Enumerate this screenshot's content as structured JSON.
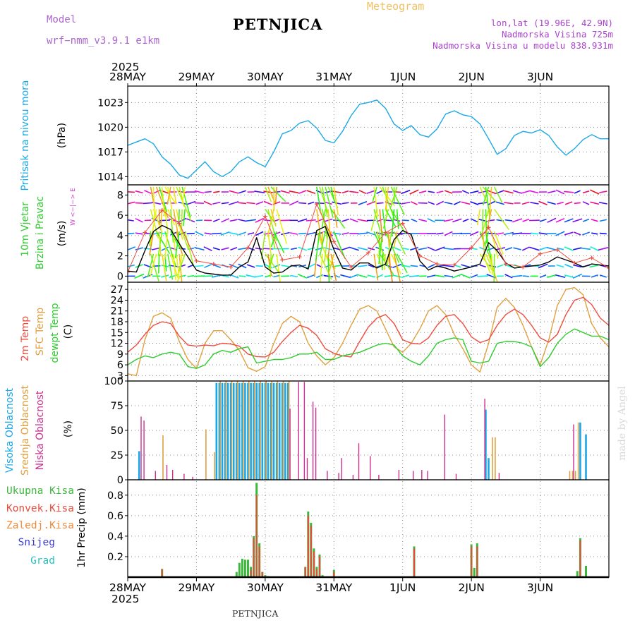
{
  "header": {
    "model_label": "Model",
    "model_name": "wrf−nmm_v3.9.1  e1km",
    "station": "PETNJICA",
    "meteogram": "Meteogram",
    "lonlat": "lon,lat (19.96E, 42.9N)",
    "altitude": "Nadmorska Visina 725m",
    "model_altitude": "Nadmorska Visina u modelu 838.931m",
    "footer_station": "PETNJICA",
    "credit": "made by Angel"
  },
  "colors": {
    "pressure": "#1aa7e8",
    "temp2m": "#ef4b3f",
    "sfc": "#e0a040",
    "dewpt": "#2ecc2e",
    "cloud_high": "#1aa7e8",
    "cloud_mid": "#e0a040",
    "cloud_low": "#cc2f8e",
    "precip_total": "#3cb83c",
    "precip_conv": "#ea4a3c",
    "precip_frz": "#f08a3a",
    "snow": "#3a3ad8",
    "hail": "#27c2c2"
  },
  "time_axis": {
    "year_top": "2025",
    "year_bottom": "2025",
    "labels": [
      "28MAY",
      "29MAY",
      "30MAY",
      "31MAY",
      "1JUN",
      "2JUN",
      "3JUN"
    ]
  },
  "panels": {
    "pressure": {
      "title": "Pritisak na nivou mora",
      "unit": "(hPa)",
      "yticks": [
        "1023",
        "1020",
        "1017",
        "1014"
      ]
    },
    "wind": {
      "title": "10m Vjetar",
      "title2": "Brzina i Pravac",
      "unit": "(m/s)",
      "yticks": [
        "8",
        "6",
        "4",
        "2",
        "0"
      ],
      "compass": "W <−|−> E"
    },
    "temp": {
      "title_2m": "2m Temp",
      "title_sfc": "SFC Temp",
      "title_dew": "dewpt Temp",
      "unit": "(C)",
      "yticks": [
        "27",
        "24",
        "21",
        "18",
        "15",
        "12",
        "9",
        "6",
        "3"
      ]
    },
    "cloud": {
      "title_high": "Visoka Oblacnost",
      "title_mid": "Srednja Oblacnost",
      "title_low": "Niska Oblacnost",
      "unit": "(%)",
      "yticks": [
        "100",
        "75",
        "50",
        "25",
        "0"
      ]
    },
    "precip": {
      "title": "1hr Precip (mm)",
      "yticks": [
        "0.8",
        "0.6",
        "0.4",
        "0.2"
      ],
      "legend": [
        "Ukupna Kisa",
        "Konvek.Kisa",
        "Zaledj.Kisa",
        "Snijeg",
        "Grad"
      ]
    }
  },
  "chart_data": [
    {
      "type": "line",
      "x_unit": "hours since 28 May 2025 00:00",
      "ylim": [
        1013,
        1025
      ],
      "series": [
        {
          "x": [
            0,
            3,
            6,
            9,
            12,
            15,
            18,
            21,
            24,
            27,
            30,
            33,
            36,
            39,
            42,
            45,
            48,
            51,
            54,
            57,
            60,
            63,
            66,
            69,
            72,
            75,
            78,
            81,
            84,
            87,
            90,
            93,
            96,
            99,
            102,
            105,
            108,
            111,
            114,
            117,
            120,
            123,
            126,
            129,
            132,
            135,
            138,
            141,
            144,
            147,
            150,
            153,
            156,
            159,
            162,
            165,
            168
          ],
          "y": [
            1017.8,
            1018.2,
            1018.6,
            1018.0,
            1016.4,
            1015.5,
            1014.2,
            1013.8,
            1014.8,
            1015.8,
            1014.6,
            1014.0,
            1014.6,
            1015.8,
            1016.4,
            1015.7,
            1015.2,
            1017.0,
            1019.2,
            1019.6,
            1020.5,
            1020.8,
            1019.9,
            1018.4,
            1018.1,
            1019.5,
            1021.4,
            1022.8,
            1023.0,
            1023.3,
            1022.3,
            1020.4,
            1019.6,
            1020.2,
            1019.1,
            1018.8,
            1019.8,
            1021.6,
            1022.0,
            1021.5,
            1021.3,
            1020.4,
            1018.6,
            1016.7,
            1017.4,
            1019.0,
            1019.5,
            1019.3,
            1019.7,
            1019.0,
            1017.6,
            1016.6,
            1017.4,
            1018.5,
            1019.1,
            1018.6,
            1018.6
          ]
        }
      ]
    },
    {
      "type": "line",
      "ylim": [
        -0.6,
        9
      ],
      "series": [
        {
          "name": "wind_speed",
          "x": [
            0,
            3,
            6,
            9,
            12,
            15,
            18,
            21,
            24,
            27,
            30,
            33,
            36,
            39,
            42,
            45,
            48,
            51,
            54,
            57,
            60,
            63,
            66,
            69,
            72,
            75,
            78,
            81,
            84,
            87,
            90,
            93,
            96,
            99,
            102,
            105,
            108,
            111,
            114,
            117,
            120,
            123,
            126,
            129,
            132,
            135,
            138,
            141,
            144,
            147,
            150,
            153,
            156,
            159,
            162,
            165,
            168
          ],
          "y": [
            0.5,
            0.4,
            2.5,
            4.4,
            5.0,
            4.6,
            3.2,
            1.9,
            0.6,
            0.3,
            0.2,
            0.1,
            0.1,
            0.9,
            1.4,
            3.8,
            0.9,
            0.3,
            0.4,
            1.0,
            1.1,
            0.7,
            4.5,
            4.9,
            2.6,
            0.8,
            0.6,
            1.3,
            1.3,
            0.8,
            1.2,
            3.6,
            4.5,
            4.1,
            1.5,
            0.6,
            1.0,
            0.8,
            0.5,
            0.7,
            0.9,
            1.2,
            3.3,
            2.5,
            1.3,
            0.8,
            0.9,
            1.0,
            1.1,
            1.4,
            1.9,
            1.6,
            1.3,
            0.9,
            1.2,
            1.1,
            1.0
          ]
        },
        {
          "name": "wind_gust",
          "x": [
            0,
            6,
            12,
            18,
            24,
            30,
            36,
            42,
            48,
            54,
            60,
            66,
            72,
            78,
            84,
            90,
            96,
            102,
            108,
            114,
            120,
            126,
            132,
            138,
            144,
            150,
            156,
            162,
            168
          ],
          "y": [
            0.4,
            4.3,
            6.5,
            5.2,
            1.5,
            1.2,
            0.9,
            2.8,
            5.9,
            1.6,
            1.9,
            7.1,
            3.4,
            0.9,
            2.3,
            4.3,
            5.2,
            2.0,
            1.2,
            1.1,
            2.8,
            4.8,
            1.2,
            0.9,
            2.2,
            2.6,
            1.3,
            1.8,
            0.8
          ]
        }
      ]
    },
    {
      "type": "line",
      "ylim": [
        1.5,
        29
      ],
      "series": [
        {
          "name": "2m Temp",
          "x": [
            0,
            3,
            6,
            9,
            12,
            15,
            18,
            21,
            24,
            27,
            30,
            33,
            36,
            39,
            42,
            45,
            48,
            51,
            54,
            57,
            60,
            63,
            66,
            69,
            72,
            75,
            78,
            81,
            84,
            87,
            90,
            93,
            96,
            99,
            102,
            105,
            108,
            111,
            114,
            117,
            120,
            123,
            126,
            129,
            132,
            135,
            138,
            141,
            144,
            147,
            150,
            153,
            156,
            159,
            162,
            165,
            168
          ],
          "y": [
            9.5,
            11.5,
            14.5,
            17.0,
            18.0,
            17.5,
            14.0,
            11.5,
            11.2,
            11.5,
            11.3,
            12.0,
            11.8,
            11.2,
            9.0,
            8.3,
            8.2,
            9.5,
            12.5,
            15.0,
            17.0,
            16.2,
            14.2,
            10.5,
            9.2,
            8.5,
            8.2,
            12.5,
            16.5,
            19.0,
            20.0,
            17.5,
            13.0,
            12.0,
            11.8,
            13.5,
            17.0,
            19.5,
            20.0,
            17.5,
            13.8,
            12.2,
            13.0,
            17.0,
            20.0,
            21.5,
            20.0,
            17.0,
            13.5,
            12.3,
            14.5,
            20.0,
            24.0,
            24.8,
            22.8,
            19.0,
            17.0
          ]
        },
        {
          "name": "SFC Temp",
          "x": [
            0,
            3,
            6,
            9,
            12,
            15,
            18,
            21,
            24,
            27,
            30,
            33,
            36,
            39,
            42,
            45,
            48,
            51,
            54,
            57,
            60,
            63,
            66,
            69,
            72,
            75,
            78,
            81,
            84,
            87,
            90,
            93,
            96,
            99,
            102,
            105,
            108,
            111,
            114,
            117,
            120,
            123,
            126,
            129,
            132,
            135,
            138,
            141,
            144,
            147,
            150,
            153,
            156,
            159,
            162,
            165,
            168
          ],
          "y": [
            3.5,
            3.0,
            13.0,
            19.5,
            20.5,
            19.0,
            12.5,
            7.5,
            5.0,
            12.0,
            15.5,
            15.5,
            13.0,
            10.0,
            5.2,
            4.2,
            5.5,
            12.0,
            17.5,
            19.5,
            18.0,
            12.0,
            8.5,
            6.0,
            8.0,
            12.0,
            17.0,
            21.5,
            22.5,
            21.0,
            16.0,
            11.0,
            9.5,
            12.0,
            16.0,
            21.0,
            22.5,
            20.0,
            14.5,
            10.5,
            6.0,
            4.0,
            12.0,
            22.0,
            24.5,
            22.0,
            17.0,
            11.0,
            6.0,
            13.0,
            22.5,
            27.0,
            27.5,
            25.5,
            17.5,
            13.5,
            11.0
          ]
        },
        {
          "name": "dewpt Temp",
          "x": [
            0,
            3,
            6,
            9,
            12,
            15,
            18,
            21,
            24,
            27,
            30,
            33,
            36,
            39,
            42,
            45,
            48,
            51,
            54,
            57,
            60,
            63,
            66,
            69,
            72,
            75,
            78,
            81,
            84,
            87,
            90,
            93,
            96,
            99,
            102,
            105,
            108,
            111,
            114,
            117,
            120,
            123,
            126,
            129,
            132,
            135,
            138,
            141,
            144,
            147,
            150,
            153,
            156,
            159,
            162,
            165,
            168
          ],
          "y": [
            6.0,
            7.5,
            8.5,
            8.0,
            9.0,
            9.5,
            9.0,
            5.5,
            5.0,
            6.0,
            9.0,
            10.0,
            9.5,
            10.5,
            11.0,
            6.5,
            7.0,
            7.5,
            7.5,
            8.0,
            9.0,
            9.0,
            9.5,
            7.5,
            7.5,
            8.5,
            9.0,
            9.5,
            10.5,
            11.5,
            12.0,
            11.5,
            8.5,
            7.0,
            6.0,
            8.5,
            12.0,
            13.0,
            13.5,
            13.0,
            7.0,
            6.5,
            7.0,
            12.0,
            12.5,
            12.5,
            12.0,
            11.0,
            5.5,
            8.0,
            12.0,
            14.5,
            16.0,
            15.0,
            14.0,
            14.0,
            13.0
          ]
        }
      ]
    },
    {
      "type": "bar",
      "ylim": [
        0,
        100
      ],
      "series": [
        {
          "name": "Visoka Oblacnost",
          "x": [
            4,
            31,
            32,
            33,
            34,
            35,
            36,
            37,
            38,
            39,
            40,
            41,
            42,
            43,
            44,
            45,
            46,
            47,
            48,
            49,
            50,
            51,
            52,
            53,
            54,
            55,
            56,
            125,
            126,
            158,
            160
          ],
          "values": [
            29,
            98,
            98,
            98,
            98,
            98,
            98,
            98,
            98,
            98,
            98,
            98,
            98,
            98,
            98,
            98,
            98,
            98,
            98,
            98,
            98,
            98,
            98,
            98,
            98,
            98,
            98,
            71,
            22,
            58,
            46
          ]
        },
        {
          "name": "Srednja Oblacnost",
          "x": [
            12,
            27,
            30,
            32,
            34,
            36,
            38,
            40,
            42,
            44,
            46,
            48,
            50,
            52,
            54,
            56,
            127,
            128,
            154,
            155,
            156,
            157
          ],
          "values": [
            45,
            51,
            28,
            100,
            100,
            100,
            100,
            100,
            100,
            100,
            100,
            100,
            100,
            100,
            100,
            100,
            43,
            43,
            9,
            9,
            9,
            58
          ]
        },
        {
          "name": "Niska Oblacnost",
          "x": [
            5,
            6,
            10,
            14,
            16,
            20,
            23,
            57,
            60,
            62,
            63,
            65,
            66,
            70,
            74,
            75,
            79,
            81,
            85,
            88,
            95,
            100,
            103,
            105,
            111,
            115,
            125,
            130,
            156
          ],
          "values": [
            64,
            60,
            9,
            15,
            10,
            6,
            3,
            72,
            99,
            99,
            22,
            79,
            73,
            9,
            7,
            22,
            5,
            37,
            24,
            5,
            10,
            9,
            10,
            9,
            66,
            6,
            82,
            7,
            56
          ]
        }
      ]
    },
    {
      "type": "bar",
      "ylim": [
        0,
        0.95
      ],
      "series": [
        {
          "name": "Ukupna Kisa",
          "x": [
            12,
            38,
            39,
            40,
            41,
            42,
            43,
            44,
            45,
            46,
            47,
            48,
            49,
            62,
            63,
            64,
            65,
            66,
            67,
            68,
            72,
            100,
            120,
            121,
            122,
            157,
            158,
            159,
            160
          ],
          "values": [
            0.08,
            0.05,
            0.14,
            0.18,
            0.17,
            0.17,
            0.1,
            0.4,
            0.92,
            0.33,
            0.05,
            0.02,
            0.01,
            0.1,
            0.64,
            0.53,
            0.28,
            0.1,
            0.22,
            0.02,
            0.07,
            0.3,
            0.32,
            0.09,
            0.33,
            0.06,
            0.38,
            0.01,
            0.11
          ]
        },
        {
          "name": "Konvek.Kisa",
          "x": [
            12,
            43,
            44,
            45,
            46,
            47,
            62,
            63,
            64,
            65,
            66,
            67,
            72,
            100,
            120,
            122,
            158
          ],
          "values": [
            0.08,
            0.07,
            0.38,
            0.8,
            0.3,
            0.05,
            0.1,
            0.6,
            0.5,
            0.25,
            0.08,
            0.2,
            0.05,
            0.28,
            0.3,
            0.3,
            0.36
          ]
        }
      ]
    }
  ]
}
